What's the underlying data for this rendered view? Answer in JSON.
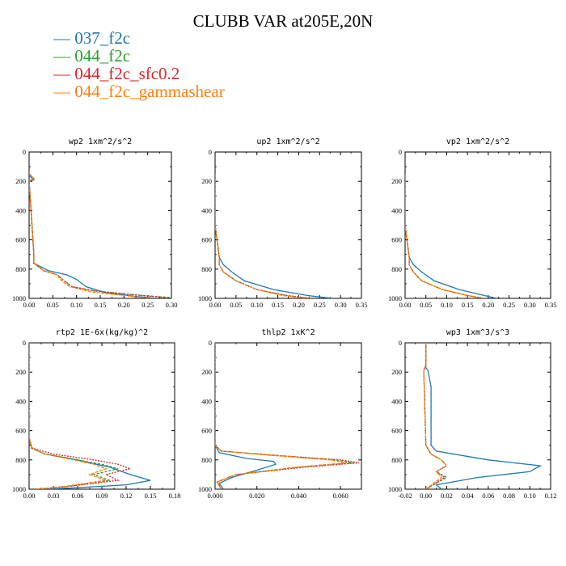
{
  "title": "CLUBB VAR at205E,20N",
  "legend": [
    {
      "label": "— 037_f2c",
      "color": "#1f77b4"
    },
    {
      "label": "— 044_f2c",
      "color": "#2ca02c"
    },
    {
      "label": "— 044_f2c_sfc0.2",
      "color": "#d62728"
    },
    {
      "label": "— 044_f2c_gammashear",
      "color": "#ff7f0e"
    }
  ],
  "chart_data": [
    {
      "type": "line",
      "title": "wp2  1xm^2/s^2",
      "xlim": [
        0,
        0.3
      ],
      "ylim": [
        1000,
        0
      ],
      "xticks": [
        "0.00",
        "0.05",
        "0.10",
        "0.15",
        "0.20",
        "0.25",
        "0.30"
      ],
      "yticks": [
        "0",
        "200",
        "400",
        "600",
        "800",
        "1000"
      ],
      "series": [
        {
          "name": "037_f2c",
          "color": "#1f77b4",
          "x": [
            0.0,
            0.0,
            0.01,
            0.0,
            0.01,
            0.01,
            0.04,
            0.08,
            0.1,
            0.12,
            0.16,
            0.22,
            0.27
          ],
          "y": [
            140,
            160,
            190,
            200,
            700,
            760,
            810,
            840,
            870,
            920,
            960,
            985,
            1000
          ]
        },
        {
          "name": "044_f2c",
          "color": "#2ca02c",
          "x": [
            0.0,
            0.0,
            0.01,
            0.0,
            0.01,
            0.01,
            0.03,
            0.06,
            0.07,
            0.09,
            0.14,
            0.22,
            0.3
          ],
          "y": [
            130,
            150,
            180,
            200,
            700,
            760,
            810,
            840,
            870,
            920,
            950,
            975,
            995
          ]
        },
        {
          "name": "044_f2c_sfc0.2",
          "color": "#d62728",
          "x": [
            0.0,
            0.0,
            0.01,
            0.0,
            0.01,
            0.01,
            0.03,
            0.06,
            0.07,
            0.09,
            0.14,
            0.22,
            0.29
          ],
          "y": [
            130,
            150,
            180,
            200,
            700,
            760,
            810,
            840,
            870,
            920,
            950,
            975,
            995
          ]
        },
        {
          "name": "044_f2c_gammashear",
          "color": "#ff7f0e",
          "x": [
            0.0,
            0.0,
            0.01,
            0.0,
            0.01,
            0.01,
            0.03,
            0.06,
            0.065,
            0.085,
            0.13,
            0.2,
            0.26
          ],
          "y": [
            130,
            150,
            180,
            200,
            700,
            760,
            810,
            840,
            870,
            920,
            955,
            980,
            1000
          ]
        }
      ]
    },
    {
      "type": "line",
      "title": "up2  1xm^2/s^2",
      "xlim": [
        0,
        0.35
      ],
      "ylim": [
        1000,
        0
      ],
      "xticks": [
        "0.00",
        "0.05",
        "0.10",
        "0.15",
        "0.20",
        "0.25",
        "0.30",
        "0.35"
      ],
      "yticks": [
        "0",
        "200",
        "400",
        "600",
        "800",
        "1000"
      ],
      "series": [
        {
          "name": "037_f2c",
          "color": "#1f77b4",
          "x": [
            0.0,
            0.0,
            0.01,
            0.02,
            0.04,
            0.07,
            0.14,
            0.22,
            0.28
          ],
          "y": [
            150,
            500,
            720,
            770,
            820,
            880,
            940,
            980,
            1000
          ]
        },
        {
          "name": "044_f2c",
          "color": "#2ca02c",
          "x": [
            0.0,
            0.0,
            0.01,
            0.01,
            0.02,
            0.05,
            0.1,
            0.17,
            0.23
          ],
          "y": [
            150,
            500,
            720,
            770,
            820,
            880,
            940,
            980,
            1000
          ]
        },
        {
          "name": "044_f2c_sfc0.2",
          "color": "#d62728",
          "x": [
            0.0,
            0.0,
            0.01,
            0.01,
            0.02,
            0.05,
            0.1,
            0.17,
            0.23
          ],
          "y": [
            150,
            500,
            720,
            770,
            820,
            880,
            940,
            980,
            1000
          ]
        },
        {
          "name": "044_f2c_gammashear",
          "color": "#ff7f0e",
          "x": [
            0.0,
            0.0,
            0.01,
            0.01,
            0.02,
            0.05,
            0.1,
            0.16,
            0.22
          ],
          "y": [
            150,
            500,
            720,
            770,
            820,
            880,
            940,
            980,
            1000
          ]
        }
      ]
    },
    {
      "type": "line",
      "title": "vp2  1xm^2/s^2",
      "xlim": [
        0,
        0.35
      ],
      "ylim": [
        1000,
        0
      ],
      "xticks": [
        "0.00",
        "0.05",
        "0.10",
        "0.15",
        "0.20",
        "0.25",
        "0.30",
        "0.35"
      ],
      "yticks": [
        "0",
        "200",
        "400",
        "600",
        "800",
        "1000"
      ],
      "series": [
        {
          "name": "037_f2c",
          "color": "#1f77b4",
          "x": [
            0.0,
            0.0,
            0.01,
            0.02,
            0.04,
            0.07,
            0.13,
            0.19,
            0.22
          ],
          "y": [
            150,
            500,
            720,
            770,
            820,
            880,
            940,
            980,
            1000
          ]
        },
        {
          "name": "044_f2c",
          "color": "#2ca02c",
          "x": [
            0.0,
            0.0,
            0.01,
            0.01,
            0.02,
            0.04,
            0.09,
            0.15,
            0.19
          ],
          "y": [
            150,
            500,
            720,
            770,
            820,
            880,
            940,
            980,
            1000
          ]
        },
        {
          "name": "044_f2c_sfc0.2",
          "color": "#d62728",
          "x": [
            0.0,
            0.0,
            0.01,
            0.01,
            0.02,
            0.04,
            0.09,
            0.15,
            0.19
          ],
          "y": [
            150,
            500,
            720,
            770,
            820,
            880,
            940,
            980,
            1000
          ]
        },
        {
          "name": "044_f2c_gammashear",
          "color": "#ff7f0e",
          "x": [
            0.0,
            0.0,
            0.01,
            0.01,
            0.02,
            0.04,
            0.09,
            0.15,
            0.19
          ],
          "y": [
            150,
            500,
            720,
            770,
            820,
            880,
            940,
            980,
            1000
          ]
        }
      ]
    },
    {
      "type": "line",
      "title": "rtp2  1E-6x(kg/kg)^2",
      "xlim": [
        0,
        0.18
      ],
      "ylim": [
        1000,
        0
      ],
      "xticks": [
        "0.00",
        "0.03",
        "0.06",
        "0.09",
        "0.12",
        "0.15",
        "0.18"
      ],
      "yticks": [
        "0",
        "200",
        "400",
        "600",
        "800",
        "1000"
      ],
      "series": [
        {
          "name": "037_f2c",
          "color": "#1f77b4",
          "x": [
            0.0,
            0.0,
            0.003,
            0.02,
            0.06,
            0.1,
            0.125,
            0.15,
            0.12,
            0.06,
            0.02
          ],
          "y": [
            0,
            650,
            720,
            760,
            800,
            850,
            900,
            940,
            970,
            990,
            1000
          ]
        },
        {
          "name": "044_f2c",
          "color": "#2ca02c",
          "x": [
            0.0,
            0.0,
            0.003,
            0.02,
            0.06,
            0.09,
            0.11,
            0.08,
            0.1,
            0.05,
            0.01
          ],
          "y": [
            0,
            650,
            720,
            760,
            800,
            830,
            860,
            900,
            940,
            980,
            1000
          ]
        },
        {
          "name": "044_f2c_sfc0.2",
          "color": "#d62728",
          "x": [
            0.0,
            0.0,
            0.004,
            0.03,
            0.08,
            0.11,
            0.125,
            0.095,
            0.11,
            0.05,
            0.01
          ],
          "y": [
            0,
            650,
            720,
            760,
            800,
            830,
            860,
            900,
            940,
            980,
            1000
          ]
        },
        {
          "name": "044_f2c_gammashear",
          "color": "#ff7f0e",
          "x": [
            0.0,
            0.0,
            0.003,
            0.02,
            0.055,
            0.08,
            0.095,
            0.075,
            0.095,
            0.045,
            0.01
          ],
          "y": [
            0,
            650,
            720,
            760,
            800,
            830,
            860,
            900,
            940,
            980,
            1000
          ]
        }
      ]
    },
    {
      "type": "line",
      "title": "thlp2  1xK^2",
      "xlim": [
        0,
        0.07
      ],
      "ylim": [
        1000,
        0
      ],
      "xticks": [
        "0.000",
        "0.020",
        "0.040",
        "0.060"
      ],
      "yticks": [
        "0",
        "200",
        "400",
        "600",
        "800",
        "1000"
      ],
      "series": [
        {
          "name": "037_f2c",
          "color": "#1f77b4",
          "x": [
            0.0,
            0.0,
            0.002,
            0.015,
            0.028,
            0.029,
            0.02,
            0.008,
            0.002,
            0.004
          ],
          "y": [
            0,
            700,
            750,
            790,
            810,
            830,
            870,
            920,
            960,
            1000
          ]
        },
        {
          "name": "044_f2c",
          "color": "#2ca02c",
          "x": [
            0.0,
            0.0,
            0.003,
            0.03,
            0.058,
            0.066,
            0.04,
            0.01,
            0.001,
            0.003
          ],
          "y": [
            0,
            700,
            740,
            770,
            800,
            820,
            850,
            900,
            950,
            1000
          ]
        },
        {
          "name": "044_f2c_sfc0.2",
          "color": "#d62728",
          "x": [
            0.0,
            0.0,
            0.003,
            0.03,
            0.06,
            0.069,
            0.042,
            0.01,
            0.001,
            0.003
          ],
          "y": [
            0,
            700,
            740,
            770,
            800,
            820,
            850,
            900,
            950,
            1000
          ]
        },
        {
          "name": "044_f2c_gammashear",
          "color": "#ff7f0e",
          "x": [
            0.0,
            0.0,
            0.003,
            0.028,
            0.055,
            0.063,
            0.038,
            0.01,
            0.001,
            0.003
          ],
          "y": [
            0,
            700,
            740,
            770,
            800,
            820,
            850,
            900,
            950,
            1000
          ]
        }
      ]
    },
    {
      "type": "line",
      "title": "wp3  1xm^3/s^3",
      "xlim": [
        -0.02,
        0.12
      ],
      "ylim": [
        1000,
        0
      ],
      "xticks": [
        "-0.02",
        "0.00",
        "0.02",
        "0.04",
        "0.06",
        "0.08",
        "0.10",
        "0.12"
      ],
      "yticks": [
        "0",
        "200",
        "400",
        "600",
        "800",
        "1000"
      ],
      "series": [
        {
          "name": "037_f2c",
          "color": "#1f77b4",
          "x": [
            0.0,
            0.0,
            0.002,
            0.005,
            0.005,
            0.01,
            0.06,
            0.11,
            0.1,
            0.05,
            0.01,
            0.015
          ],
          "y": [
            0,
            170,
            190,
            300,
            700,
            740,
            800,
            840,
            880,
            920,
            970,
            1000
          ]
        },
        {
          "name": "044_f2c",
          "color": "#2ca02c",
          "x": [
            0.0,
            0.0,
            -0.002,
            0.0,
            0.005,
            0.015,
            0.02,
            0.01,
            0.02,
            0.0
          ],
          "y": [
            0,
            150,
            190,
            700,
            760,
            800,
            840,
            880,
            920,
            1000
          ]
        },
        {
          "name": "044_f2c_sfc0.2",
          "color": "#d62728",
          "x": [
            0.0,
            0.0,
            -0.002,
            0.0,
            0.005,
            0.015,
            0.02,
            0.01,
            0.018,
            0.0
          ],
          "y": [
            0,
            150,
            190,
            700,
            760,
            800,
            840,
            880,
            920,
            1000
          ]
        },
        {
          "name": "044_f2c_gammashear",
          "color": "#ff7f0e",
          "x": [
            0.0,
            0.0,
            -0.002,
            0.0,
            0.005,
            0.015,
            0.02,
            0.01,
            0.015,
            0.0
          ],
          "y": [
            0,
            150,
            190,
            700,
            760,
            800,
            840,
            880,
            920,
            1000
          ]
        }
      ]
    }
  ]
}
